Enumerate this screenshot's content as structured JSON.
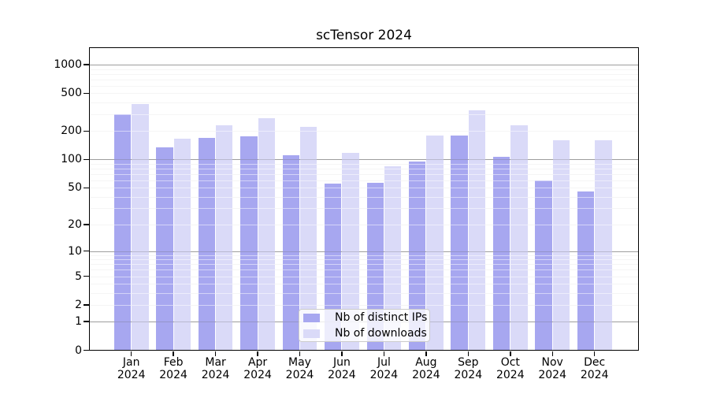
{
  "chart_data": {
    "type": "bar",
    "title": "scTensor 2024",
    "year_label": "2024",
    "categories": [
      "Jan",
      "Feb",
      "Mar",
      "Apr",
      "May",
      "Jun",
      "Jul",
      "Aug",
      "Sep",
      "Oct",
      "Nov",
      "Dec"
    ],
    "series": [
      {
        "name": "Nb of distinct IPs",
        "color": "#a7a7f0",
        "values": [
          300,
          134,
          168,
          176,
          111,
          55,
          57,
          96,
          178,
          106,
          60,
          46
        ]
      },
      {
        "name": "Nb of downloads",
        "color": "#dadaf8",
        "values": [
          385,
          165,
          230,
          272,
          221,
          118,
          84,
          178,
          331,
          230,
          160,
          160
        ]
      }
    ],
    "yticks": [
      0,
      1,
      2,
      5,
      10,
      20,
      50,
      100,
      200,
      500,
      1000
    ],
    "ylim": [
      0,
      1500
    ],
    "yscale": "log1p",
    "grid": "horizontal-major-and-minor",
    "legend_position": "inside-bottom-center",
    "colors": {
      "axis": "#000000",
      "major_grid": "#b3b3b3",
      "minor_grid": "#ebebeb",
      "legend_border": "#cccccc",
      "legend_bg": "rgba(255,255,255,0.8)",
      "background": "#ffffff"
    }
  }
}
